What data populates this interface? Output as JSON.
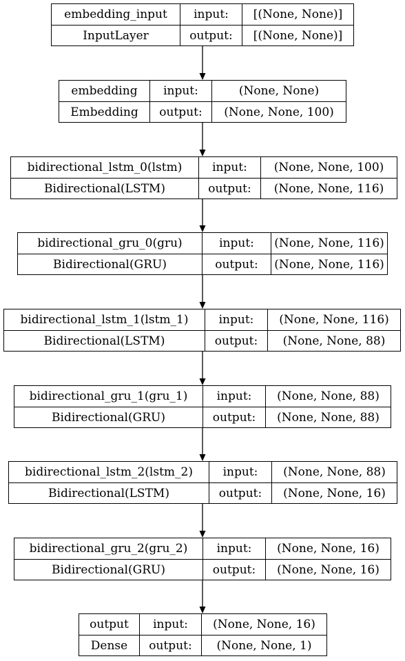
{
  "labels": {
    "input": "input:",
    "output": "output:"
  },
  "layers": [
    {
      "name": "embedding_input",
      "type": "InputLayer",
      "input": "[(None, None)]",
      "output": "[(None, None)]"
    },
    {
      "name": "embedding",
      "type": "Embedding",
      "input": "(None, None)",
      "output": "(None, None, 100)"
    },
    {
      "name": "bidirectional_lstm_0(lstm)",
      "type": "Bidirectional(LSTM)",
      "input": "(None, None, 100)",
      "output": "(None, None, 116)"
    },
    {
      "name": "bidirectional_gru_0(gru)",
      "type": "Bidirectional(GRU)",
      "input": "(None, None, 116)",
      "output": "(None, None, 116)"
    },
    {
      "name": "bidirectional_lstm_1(lstm_1)",
      "type": "Bidirectional(LSTM)",
      "input": "(None, None, 116)",
      "output": "(None, None, 88)"
    },
    {
      "name": "bidirectional_gru_1(gru_1)",
      "type": "Bidirectional(GRU)",
      "input": "(None, None, 88)",
      "output": "(None, None, 88)"
    },
    {
      "name": "bidirectional_lstm_2(lstm_2)",
      "type": "Bidirectional(LSTM)",
      "input": "(None, None, 88)",
      "output": "(None, None, 16)"
    },
    {
      "name": "bidirectional_gru_2(gru_2)",
      "type": "Bidirectional(GRU)",
      "input": "(None, None, 16)",
      "output": "(None, None, 16)"
    },
    {
      "name": "output",
      "type": "Dense",
      "input": "(None, None, 16)",
      "output": "(None, None, 1)"
    }
  ]
}
